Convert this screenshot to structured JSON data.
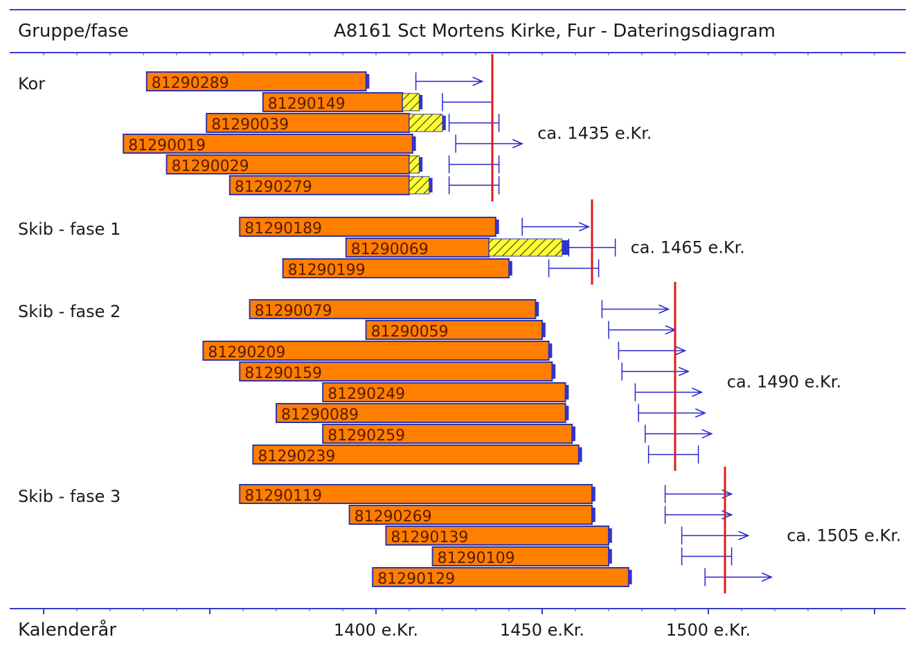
{
  "header": {
    "left": "Gruppe/fase",
    "title": "A8161 Sct Mortens Kirke, Fur - Dateringsdiagram"
  },
  "footer": {
    "axis_label": "Kalenderår"
  },
  "colors": {
    "rule": "#3a3ac8",
    "bar_fill": "#ff7f00",
    "bar_edge": "#3333aa",
    "sapwood_fill": "#ffff33",
    "sapwood_hatch": "#222222",
    "estimate": "#2626cc",
    "dating_line": "#dd1a1a"
  },
  "chart_data": {
    "type": "bar",
    "x_axis": {
      "label": "Kalenderår",
      "range": [
        1300,
        1550
      ],
      "major_ticks": [
        1400,
        1450,
        1500
      ],
      "tick_labels": [
        "1400 e.Kr.",
        "1450 e.Kr.",
        "1500 e.Kr."
      ],
      "minor_tick_step": 10
    },
    "groups": [
      {
        "name": "Kor",
        "dating": 1435,
        "dating_label": "ca. 1435 e.Kr.",
        "samples": [
          {
            "id": "81290289",
            "start": 1331,
            "heart_end": 1397,
            "sap_end": 1397,
            "bark": 1398,
            "est_from": 1412,
            "est_to": 1432,
            "open_end": true
          },
          {
            "id": "81290149",
            "start": 1366,
            "heart_end": 1408,
            "sap_end": 1413,
            "bark": 1414,
            "est_from": 1420,
            "est_to": 1435,
            "open_end": false
          },
          {
            "id": "81290039",
            "start": 1349,
            "heart_end": 1410,
            "sap_end": 1420,
            "bark": 1421,
            "est_from": 1422,
            "est_to": 1437,
            "open_end": false
          },
          {
            "id": "81290019",
            "start": 1324,
            "heart_end": 1411,
            "sap_end": 1411,
            "bark": 1412,
            "est_from": 1424,
            "est_to": 1444,
            "open_end": true
          },
          {
            "id": "81290029",
            "start": 1337,
            "heart_end": 1410,
            "sap_end": 1413,
            "bark": 1414,
            "est_from": 1422,
            "est_to": 1437,
            "open_end": false
          },
          {
            "id": "81290279",
            "start": 1356,
            "heart_end": 1410,
            "sap_end": 1416,
            "bark": 1417,
            "est_from": 1422,
            "est_to": 1437,
            "open_end": false
          }
        ]
      },
      {
        "name": "Skib - fase 1",
        "dating": 1465,
        "dating_label": "ca. 1465 e.Kr.",
        "samples": [
          {
            "id": "81290189",
            "start": 1359,
            "heart_end": 1436,
            "sap_end": 1436,
            "bark": 1437,
            "est_from": 1444,
            "est_to": 1464,
            "open_end": true
          },
          {
            "id": "81290069",
            "start": 1391,
            "heart_end": 1434,
            "sap_end": 1456,
            "bark": 1458,
            "est_from": 1458,
            "est_to": 1472,
            "open_end": false
          },
          {
            "id": "81290199",
            "start": 1372,
            "heart_end": 1440,
            "sap_end": 1440,
            "bark": 1441,
            "est_from": 1452,
            "est_to": 1467,
            "open_end": false
          }
        ]
      },
      {
        "name": "Skib - fase 2",
        "dating": 1490,
        "dating_label": "ca. 1490 e.Kr.",
        "samples": [
          {
            "id": "81290079",
            "start": 1362,
            "heart_end": 1448,
            "sap_end": 1448,
            "bark": 1449,
            "est_from": 1468,
            "est_to": 1488,
            "open_end": true
          },
          {
            "id": "81290059",
            "start": 1397,
            "heart_end": 1450,
            "sap_end": 1450,
            "bark": 1451,
            "est_from": 1470,
            "est_to": 1490,
            "open_end": true
          },
          {
            "id": "81290209",
            "start": 1348,
            "heart_end": 1452,
            "sap_end": 1452,
            "bark": 1453,
            "est_from": 1473,
            "est_to": 1493,
            "open_end": true
          },
          {
            "id": "81290159",
            "start": 1359,
            "heart_end": 1453,
            "sap_end": 1453,
            "bark": 1454,
            "est_from": 1474,
            "est_to": 1494,
            "open_end": true
          },
          {
            "id": "81290249",
            "start": 1384,
            "heart_end": 1457,
            "sap_end": 1457,
            "bark": 1458,
            "est_from": 1478,
            "est_to": 1498,
            "open_end": true
          },
          {
            "id": "81290089",
            "start": 1370,
            "heart_end": 1457,
            "sap_end": 1457,
            "bark": 1458,
            "est_from": 1479,
            "est_to": 1499,
            "open_end": true
          },
          {
            "id": "81290259",
            "start": 1384,
            "heart_end": 1459,
            "sap_end": 1459,
            "bark": 1460,
            "est_from": 1481,
            "est_to": 1501,
            "open_end": true
          },
          {
            "id": "81290239",
            "start": 1363,
            "heart_end": 1461,
            "sap_end": 1461,
            "bark": 1462,
            "est_from": 1482,
            "est_to": 1497,
            "open_end": false
          }
        ]
      },
      {
        "name": "Skib - fase 3",
        "dating": 1505,
        "dating_label": "ca. 1505 e.Kr.",
        "samples": [
          {
            "id": "81290119",
            "start": 1359,
            "heart_end": 1465,
            "sap_end": 1465,
            "bark": 1466,
            "est_from": 1487,
            "est_to": 1507,
            "open_end": true
          },
          {
            "id": "81290269",
            "start": 1392,
            "heart_end": 1465,
            "sap_end": 1465,
            "bark": 1466,
            "est_from": 1487,
            "est_to": 1507,
            "open_end": true
          },
          {
            "id": "81290139",
            "start": 1403,
            "heart_end": 1470,
            "sap_end": 1470,
            "bark": 1471,
            "est_from": 1492,
            "est_to": 1512,
            "open_end": true
          },
          {
            "id": "81290109",
            "start": 1417,
            "heart_end": 1470,
            "sap_end": 1470,
            "bark": 1471,
            "est_from": 1492,
            "est_to": 1507,
            "open_end": false
          },
          {
            "id": "81290129",
            "start": 1399,
            "heart_end": 1476,
            "sap_end": 1476,
            "bark": 1477,
            "est_from": 1499,
            "est_to": 1519,
            "open_end": true
          }
        ]
      }
    ]
  }
}
